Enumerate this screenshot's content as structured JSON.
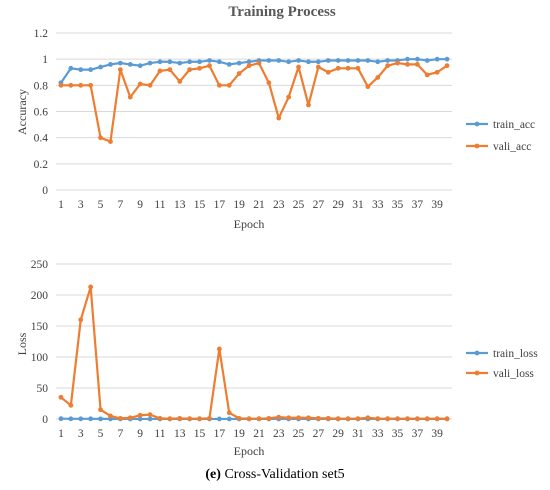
{
  "caption": {
    "label": "(e)",
    "text": "Cross-Validation set5"
  },
  "chart_data": [
    {
      "type": "line",
      "title": "Training Process",
      "xlabel": "Epoch",
      "ylabel": "Accuracy",
      "ylim": [
        0,
        1.2
      ],
      "yticks": [
        "0",
        "0.2",
        "0.4",
        "0.6",
        "0.8",
        "1",
        "1.2"
      ],
      "yticks_values": [
        0,
        0.2,
        0.4,
        0.6,
        0.8,
        1.0,
        1.2
      ],
      "x": [
        1,
        2,
        3,
        4,
        5,
        6,
        7,
        8,
        9,
        10,
        11,
        12,
        13,
        14,
        15,
        16,
        17,
        18,
        19,
        20,
        21,
        22,
        23,
        24,
        25,
        26,
        27,
        28,
        29,
        30,
        31,
        32,
        33,
        34,
        35,
        36,
        37,
        38,
        39,
        40
      ],
      "xtick_labels": [
        "1",
        "3",
        "5",
        "7",
        "9",
        "11",
        "13",
        "15",
        "17",
        "19",
        "21",
        "23",
        "25",
        "27",
        "29",
        "31",
        "33",
        "35",
        "37",
        "39"
      ],
      "xtick_values": [
        1,
        3,
        5,
        7,
        9,
        11,
        13,
        15,
        17,
        19,
        21,
        23,
        25,
        27,
        29,
        31,
        33,
        35,
        37,
        39
      ],
      "grid": true,
      "legend_position": "right",
      "series": [
        {
          "name": "train_acc",
          "color": "#5B9BD5",
          "values": [
            0.82,
            0.93,
            0.92,
            0.92,
            0.94,
            0.96,
            0.97,
            0.96,
            0.95,
            0.97,
            0.98,
            0.98,
            0.97,
            0.98,
            0.98,
            0.99,
            0.98,
            0.96,
            0.97,
            0.98,
            0.99,
            0.99,
            0.99,
            0.98,
            0.99,
            0.98,
            0.98,
            0.99,
            0.99,
            0.99,
            0.99,
            0.99,
            0.98,
            0.99,
            0.99,
            1.0,
            1.0,
            0.99,
            1.0,
            1.0
          ]
        },
        {
          "name": "vali_acc",
          "color": "#ED7D31",
          "values": [
            0.8,
            0.8,
            0.8,
            0.8,
            0.4,
            0.37,
            0.92,
            0.71,
            0.81,
            0.8,
            0.91,
            0.92,
            0.83,
            0.92,
            0.93,
            0.95,
            0.8,
            0.8,
            0.89,
            0.95,
            0.97,
            0.82,
            0.55,
            0.71,
            0.94,
            0.65,
            0.94,
            0.9,
            0.93,
            0.93,
            0.93,
            0.79,
            0.86,
            0.95,
            0.97,
            0.96,
            0.96,
            0.88,
            0.9,
            0.95
          ]
        }
      ]
    },
    {
      "type": "line",
      "title": "",
      "xlabel": "Epoch",
      "ylabel": "Loss",
      "ylim": [
        0,
        250
      ],
      "yticks": [
        "0",
        "50",
        "100",
        "150",
        "200",
        "250"
      ],
      "yticks_values": [
        0,
        50,
        100,
        150,
        200,
        250
      ],
      "x": [
        1,
        2,
        3,
        4,
        5,
        6,
        7,
        8,
        9,
        10,
        11,
        12,
        13,
        14,
        15,
        16,
        17,
        18,
        19,
        20,
        21,
        22,
        23,
        24,
        25,
        26,
        27,
        28,
        29,
        30,
        31,
        32,
        33,
        34,
        35,
        36,
        37,
        38,
        39,
        40
      ],
      "xtick_labels": [
        "1",
        "3",
        "5",
        "7",
        "9",
        "11",
        "13",
        "15",
        "17",
        "19",
        "21",
        "23",
        "25",
        "27",
        "29",
        "31",
        "33",
        "35",
        "37",
        "39"
      ],
      "xtick_values": [
        1,
        3,
        5,
        7,
        9,
        11,
        13,
        15,
        17,
        19,
        21,
        23,
        25,
        27,
        29,
        31,
        33,
        35,
        37,
        39
      ],
      "grid": true,
      "legend_position": "right",
      "series": [
        {
          "name": "train_loss",
          "color": "#5B9BD5",
          "values": [
            0.5,
            0.3,
            0.3,
            0.3,
            0.2,
            0.2,
            0.1,
            0.1,
            0.1,
            0.1,
            0.1,
            0.1,
            0.1,
            0.1,
            0.1,
            0.1,
            0.1,
            0.1,
            0.1,
            0.1,
            0.1,
            0.1,
            0.1,
            0.1,
            0.1,
            0.1,
            0.1,
            0.1,
            0.1,
            0.1,
            0.1,
            0.1,
            0.1,
            0.1,
            0.1,
            0.1,
            0.1,
            0.1,
            0.1,
            0.1
          ]
        },
        {
          "name": "vali_loss",
          "color": "#ED7D31",
          "values": [
            35,
            22,
            160,
            213,
            15,
            5,
            1,
            2,
            6,
            7,
            1,
            0.5,
            1,
            0.5,
            0.5,
            1,
            113,
            10,
            1,
            0.5,
            0.5,
            1,
            3,
            2,
            2,
            2,
            1,
            1,
            0.5,
            0.5,
            0.5,
            2,
            0.5,
            0.5,
            0.5,
            0.5,
            0.5,
            0.5,
            0.5,
            0.5
          ]
        }
      ]
    }
  ]
}
